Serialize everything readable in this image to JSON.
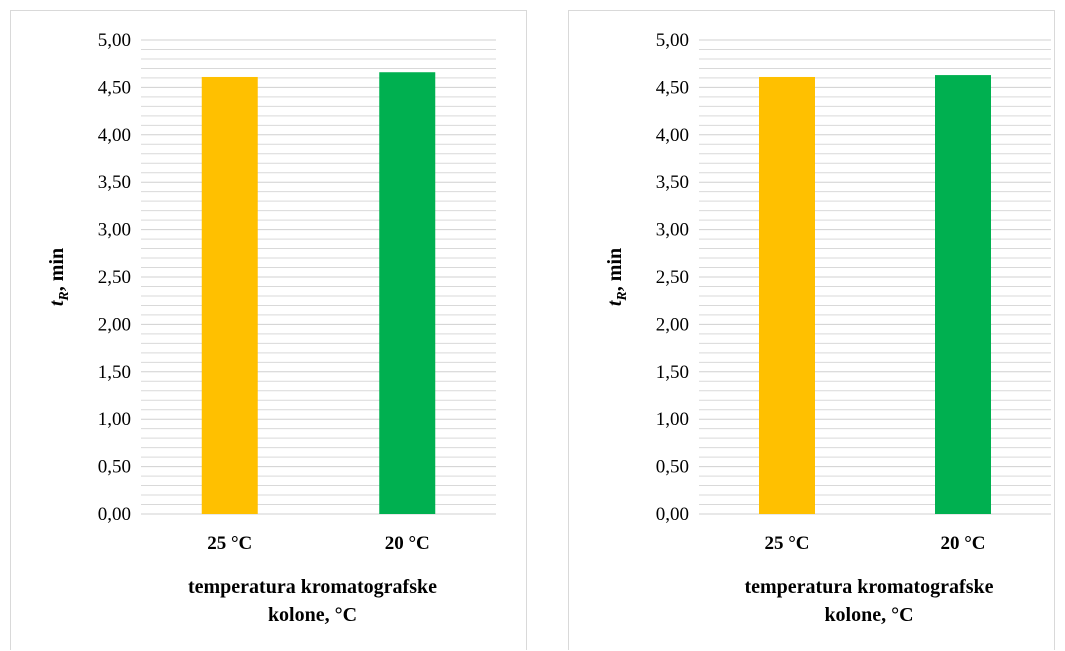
{
  "chart_data": [
    {
      "type": "bar",
      "categories": [
        "25 °C",
        "20 °C"
      ],
      "values": [
        4.61,
        4.66
      ],
      "bar_colors": [
        "#FFC000",
        "#00B050"
      ],
      "ylim": [
        0,
        5
      ],
      "ytick_labels": [
        "0,00",
        "0,50",
        "1,00",
        "1,50",
        "2,00",
        "2,50",
        "3,00",
        "3,50",
        "4,00",
        "4,50",
        "5,00"
      ],
      "xlabel_line1": "temperatura kromatografske",
      "xlabel_line2": "kolone, °C",
      "ylabel_main": "t",
      "ylabel_sub": "R",
      "ylabel_rest": ", min",
      "grid": true,
      "legend": "none"
    },
    {
      "type": "bar",
      "categories": [
        "25 °C",
        "20 °C"
      ],
      "values": [
        4.61,
        4.63
      ],
      "bar_colors": [
        "#FFC000",
        "#00B050"
      ],
      "ylim": [
        0,
        5
      ],
      "ytick_labels": [
        "0,00",
        "0,50",
        "1,00",
        "1,50",
        "2,00",
        "2,50",
        "3,00",
        "3,50",
        "4,00",
        "4,50",
        "5,00"
      ],
      "xlabel_line1": "temperatura kromatografske",
      "xlabel_line2": "kolone, °C",
      "ylabel_main": "t",
      "ylabel_sub": "R",
      "ylabel_rest": ", min",
      "grid": true,
      "legend": "none"
    }
  ]
}
